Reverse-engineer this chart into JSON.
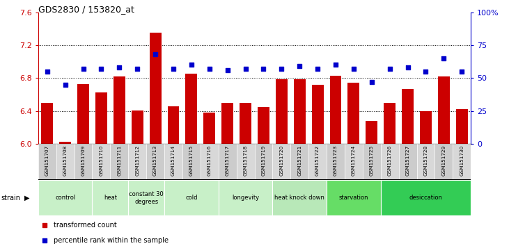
{
  "title": "GDS2830 / 153820_at",
  "samples": [
    "GSM151707",
    "GSM151708",
    "GSM151709",
    "GSM151710",
    "GSM151711",
    "GSM151712",
    "GSM151713",
    "GSM151714",
    "GSM151715",
    "GSM151716",
    "GSM151717",
    "GSM151718",
    "GSM151719",
    "GSM151720",
    "GSM151721",
    "GSM151722",
    "GSM151723",
    "GSM151724",
    "GSM151725",
    "GSM151726",
    "GSM151727",
    "GSM151728",
    "GSM151729",
    "GSM151730"
  ],
  "bar_values": [
    6.5,
    6.03,
    6.73,
    6.63,
    6.82,
    6.41,
    7.35,
    6.46,
    6.85,
    6.38,
    6.5,
    6.5,
    6.45,
    6.79,
    6.79,
    6.72,
    6.83,
    6.74,
    6.28,
    6.5,
    6.67,
    6.4,
    6.82,
    6.42
  ],
  "percentile_values": [
    55,
    45,
    57,
    57,
    58,
    57,
    68,
    57,
    60,
    57,
    56,
    57,
    57,
    57,
    59,
    57,
    60,
    57,
    47,
    57,
    58,
    55,
    65,
    55
  ],
  "ylim_left": [
    6.0,
    7.6
  ],
  "ylim_right": [
    0,
    100
  ],
  "yticks_left": [
    6.0,
    6.4,
    6.8,
    7.2,
    7.6
  ],
  "yticks_right": [
    0,
    25,
    50,
    75,
    100
  ],
  "bar_color": "#cc0000",
  "dot_color": "#0000cc",
  "bar_bottom": 6.0,
  "groups": [
    {
      "label": "control",
      "start": 0,
      "end": 3,
      "color": "#bbeecc"
    },
    {
      "label": "heat",
      "start": 3,
      "end": 5,
      "color": "#bbeecc"
    },
    {
      "label": "constant 30\ndegrees",
      "start": 5,
      "end": 7,
      "color": "#aaddcc"
    },
    {
      "label": "cold",
      "start": 7,
      "end": 10,
      "color": "#bbeecc"
    },
    {
      "label": "longevity",
      "start": 10,
      "end": 13,
      "color": "#bbeecc"
    },
    {
      "label": "heat knock down",
      "start": 13,
      "end": 16,
      "color": "#aaddcc"
    },
    {
      "label": "starvation",
      "start": 16,
      "end": 19,
      "color": "#66dd88"
    },
    {
      "label": "desiccation",
      "start": 19,
      "end": 24,
      "color": "#44cc66"
    }
  ],
  "group_colors": [
    "#c8f0c8",
    "#c8f0c8",
    "#c8f0c8",
    "#c8f0c8",
    "#c8f0c8",
    "#b8e8b8",
    "#66dd66",
    "#33cc55"
  ],
  "legend_items": [
    {
      "label": "transformed count",
      "color": "#cc0000"
    },
    {
      "label": "percentile rank within the sample",
      "color": "#0000cc"
    }
  ],
  "strain_label": "strain",
  "background_color": "#ffffff",
  "tick_label_color_left": "#cc0000",
  "tick_label_color_right": "#0000cc"
}
